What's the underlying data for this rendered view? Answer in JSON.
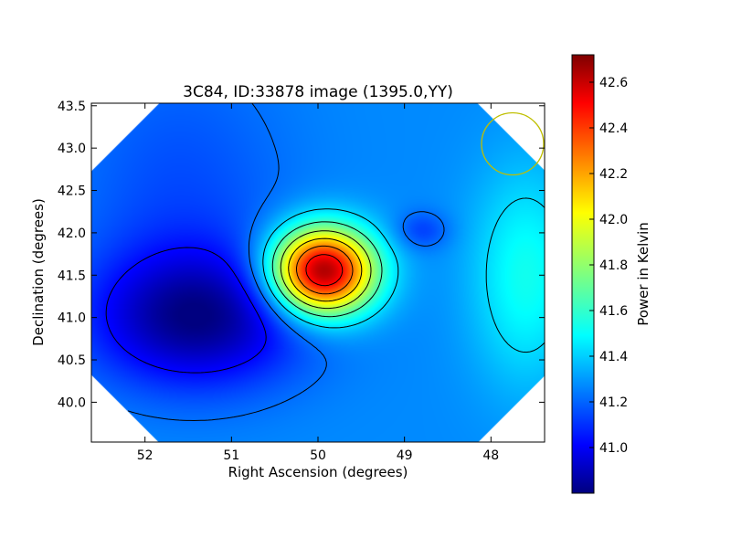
{
  "chart_data": {
    "type": "heatmap",
    "title": "3C84, ID:33878 image (1395.0,YY)",
    "xlabel": "Right Ascension (degrees)",
    "ylabel": "Declination (degrees)",
    "colorbar_label": "Power in Kelvin",
    "colormap": "jet",
    "x_axis_inverted": true,
    "xlim": [
      52.62,
      47.38
    ],
    "ylim": [
      39.53,
      43.53
    ],
    "x_ticks": [
      52,
      51,
      50,
      49,
      48
    ],
    "x_tick_labels": [
      "52",
      "51",
      "50",
      "49",
      "48"
    ],
    "y_ticks": [
      40.0,
      40.5,
      41.0,
      41.5,
      42.0,
      42.5,
      43.0,
      43.5
    ],
    "y_tick_labels": [
      "40.0",
      "40.5",
      "41.0",
      "41.5",
      "42.0",
      "42.5",
      "43.0",
      "43.5"
    ],
    "color_range": [
      40.8,
      42.72
    ],
    "colorbar_ticks": [
      41.0,
      41.2,
      41.4,
      41.6,
      41.8,
      42.0,
      42.2,
      42.4,
      42.6
    ],
    "colorbar_tick_labels": [
      "41.0",
      "41.2",
      "41.4",
      "41.6",
      "41.8",
      "42.0",
      "42.2",
      "42.4",
      "42.6"
    ],
    "features": [
      {
        "kind": "peak",
        "ra": 49.95,
        "dec": 41.55,
        "value": 42.7
      },
      {
        "kind": "minimum",
        "ra": 51.4,
        "dec": 41.0,
        "value": 40.85
      },
      {
        "kind": "local_minimum",
        "ra": 48.8,
        "dec": 42.03,
        "value": 41.15
      },
      {
        "kind": "plateau",
        "ra": 47.6,
        "dec": 41.5,
        "value": 41.55
      }
    ],
    "contour_levels": [
      41.05,
      41.25,
      41.45,
      41.65,
      41.85,
      42.05,
      42.25,
      42.45
    ],
    "beam_marker": {
      "ra": 47.75,
      "dec": 43.05,
      "color": "#bfbf00"
    },
    "grid": false
  }
}
